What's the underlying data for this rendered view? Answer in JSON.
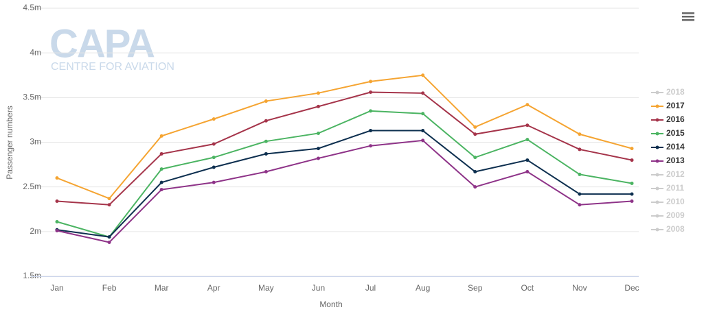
{
  "chart_data": {
    "type": "line",
    "watermark": {
      "title": "CAPA",
      "subtitle": "CENTRE FOR AVIATION"
    },
    "x_label": "Month",
    "y_label": "Passenger numbers",
    "categories": [
      "Jan",
      "Feb",
      "Mar",
      "Apr",
      "May",
      "Jun",
      "Jul",
      "Aug",
      "Sep",
      "Oct",
      "Nov",
      "Dec"
    ],
    "ylim": [
      1.5,
      4.5
    ],
    "yticks": [
      {
        "value": 1.5,
        "label": "1.5m"
      },
      {
        "value": 2,
        "label": "2m"
      },
      {
        "value": 2.5,
        "label": "2.5m"
      },
      {
        "value": 3,
        "label": "3m"
      },
      {
        "value": 3.5,
        "label": "3.5m"
      },
      {
        "value": 4,
        "label": "4m"
      },
      {
        "value": 4.5,
        "label": "4.5m"
      }
    ],
    "grid": true,
    "legend": "right",
    "series": [
      {
        "name": "2018",
        "color": "#cccccc",
        "visible": false,
        "values": [
          null,
          null,
          null,
          null,
          null,
          null,
          null,
          null,
          null,
          null,
          null,
          null
        ]
      },
      {
        "name": "2017",
        "color": "#f5a431",
        "visible": true,
        "values": [
          2.6,
          2.37,
          3.07,
          3.26,
          3.46,
          3.55,
          3.68,
          3.75,
          3.17,
          3.42,
          3.09,
          2.93
        ]
      },
      {
        "name": "2016",
        "color": "#a5344a",
        "visible": true,
        "values": [
          2.34,
          2.3,
          2.87,
          2.98,
          3.24,
          3.4,
          3.56,
          3.55,
          3.09,
          3.19,
          2.92,
          2.8
        ]
      },
      {
        "name": "2015",
        "color": "#4bb462",
        "visible": true,
        "values": [
          2.11,
          1.94,
          2.7,
          2.83,
          3.01,
          3.1,
          3.35,
          3.32,
          2.83,
          3.03,
          2.64,
          2.54
        ]
      },
      {
        "name": "2014",
        "color": "#0d2f4f",
        "visible": true,
        "values": [
          2.02,
          1.94,
          2.55,
          2.72,
          2.87,
          2.93,
          3.13,
          3.13,
          2.67,
          2.8,
          2.42,
          2.42
        ]
      },
      {
        "name": "2013",
        "color": "#8e3388",
        "visible": true,
        "values": [
          2.01,
          1.88,
          2.47,
          2.55,
          2.67,
          2.82,
          2.96,
          3.02,
          2.5,
          2.67,
          2.3,
          2.34
        ]
      },
      {
        "name": "2012",
        "color": "#cccccc",
        "visible": false,
        "values": [
          null,
          null,
          null,
          null,
          null,
          null,
          null,
          null,
          null,
          null,
          null,
          null
        ]
      },
      {
        "name": "2011",
        "color": "#cccccc",
        "visible": false,
        "values": [
          null,
          null,
          null,
          null,
          null,
          null,
          null,
          null,
          null,
          null,
          null,
          null
        ]
      },
      {
        "name": "2010",
        "color": "#cccccc",
        "visible": false,
        "values": [
          null,
          null,
          null,
          null,
          null,
          null,
          null,
          null,
          null,
          null,
          null,
          null
        ]
      },
      {
        "name": "2009",
        "color": "#cccccc",
        "visible": false,
        "values": [
          null,
          null,
          null,
          null,
          null,
          null,
          null,
          null,
          null,
          null,
          null,
          null
        ]
      },
      {
        "name": "2008",
        "color": "#cccccc",
        "visible": false,
        "values": [
          null,
          null,
          null,
          null,
          null,
          null,
          null,
          null,
          null,
          null,
          null,
          null
        ]
      }
    ]
  }
}
